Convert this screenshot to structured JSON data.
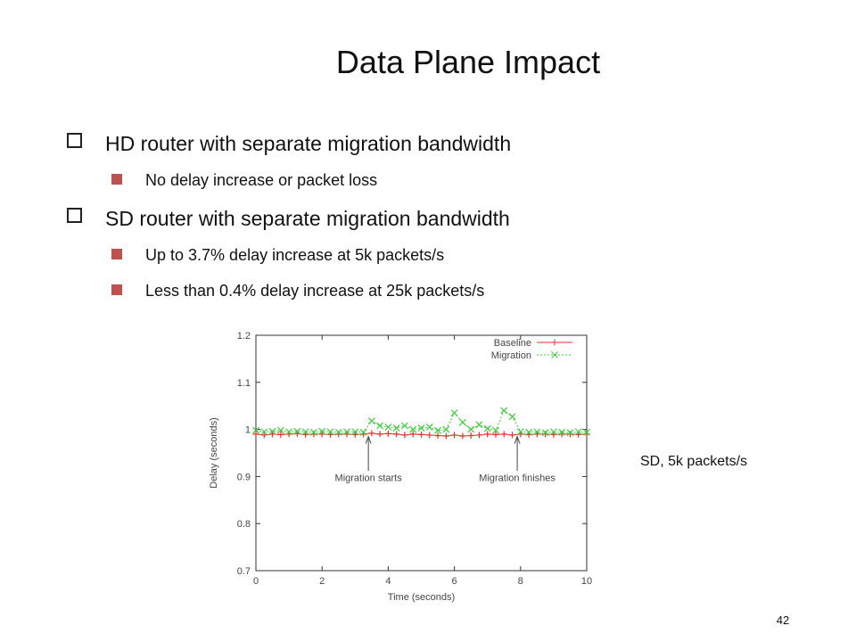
{
  "title": "Data Plane Impact",
  "bullets": [
    {
      "text": "HD router with separate migration bandwidth",
      "sub": [
        "No delay increase or packet loss"
      ]
    },
    {
      "text": "SD router with separate migration bandwidth",
      "sub": [
        "Up to 3.7% delay increase at 5k packets/s",
        "Less than 0.4% delay increase at 25k packets/s"
      ]
    }
  ],
  "caption": "SD, 5k packets/s",
  "page_number": "42",
  "chart_data": {
    "type": "line",
    "x_label": "Time (seconds)",
    "y_label": "Delay (seconds)",
    "x": [
      0,
      0.25,
      0.5,
      0.75,
      1,
      1.25,
      1.5,
      1.75,
      2,
      2.25,
      2.5,
      2.75,
      3,
      3.25,
      3.5,
      3.75,
      4,
      4.25,
      4.5,
      4.75,
      5,
      5.25,
      5.5,
      5.75,
      6,
      6.25,
      6.5,
      6.75,
      7,
      7.25,
      7.5,
      7.75,
      8,
      8.25,
      8.5,
      8.75,
      9,
      9.25,
      9.5,
      9.75,
      10
    ],
    "series": [
      {
        "name": "Baseline",
        "color": "#e8302a",
        "marker": "+",
        "values": [
          0.99,
          0.988,
          0.99,
          0.989,
          0.99,
          0.991,
          0.989,
          0.99,
          0.99,
          0.989,
          0.99,
          0.99,
          0.989,
          0.99,
          0.992,
          0.99,
          0.991,
          0.99,
          0.988,
          0.99,
          0.989,
          0.988,
          0.987,
          0.986,
          0.988,
          0.986,
          0.987,
          0.988,
          0.99,
          0.989,
          0.99,
          0.988,
          0.99,
          0.989,
          0.99,
          0.99,
          0.989,
          0.99,
          0.99,
          0.989,
          0.99
        ]
      },
      {
        "name": "Migration",
        "color": "#3ccc3c",
        "marker": "x",
        "values": [
          0.998,
          0.995,
          0.996,
          0.998,
          0.995,
          0.996,
          0.995,
          0.994,
          0.996,
          0.995,
          0.994,
          0.995,
          0.995,
          0.994,
          1.018,
          1.008,
          1.005,
          1.003,
          1.008,
          1.0,
          1.003,
          1.005,
          0.998,
          1.0,
          1.035,
          1.015,
          1.0,
          1.01,
          1.002,
          0.998,
          1.04,
          1.027,
          0.995,
          0.994,
          0.995,
          0.993,
          0.995,
          0.994,
          0.993,
          0.995,
          0.994
        ]
      }
    ],
    "annotations": [
      {
        "text": "Migration starts",
        "x": 3.4
      },
      {
        "text": "Migration finishes",
        "x": 7.9
      }
    ],
    "xlim": [
      0,
      10
    ],
    "xticks": [
      0,
      2,
      4,
      6,
      8,
      10
    ],
    "ylim": [
      0.7,
      1.2
    ],
    "yticks": [
      0.7,
      0.8,
      0.9,
      1,
      1.1,
      1.2
    ],
    "legend": "top-right",
    "grid": false
  }
}
